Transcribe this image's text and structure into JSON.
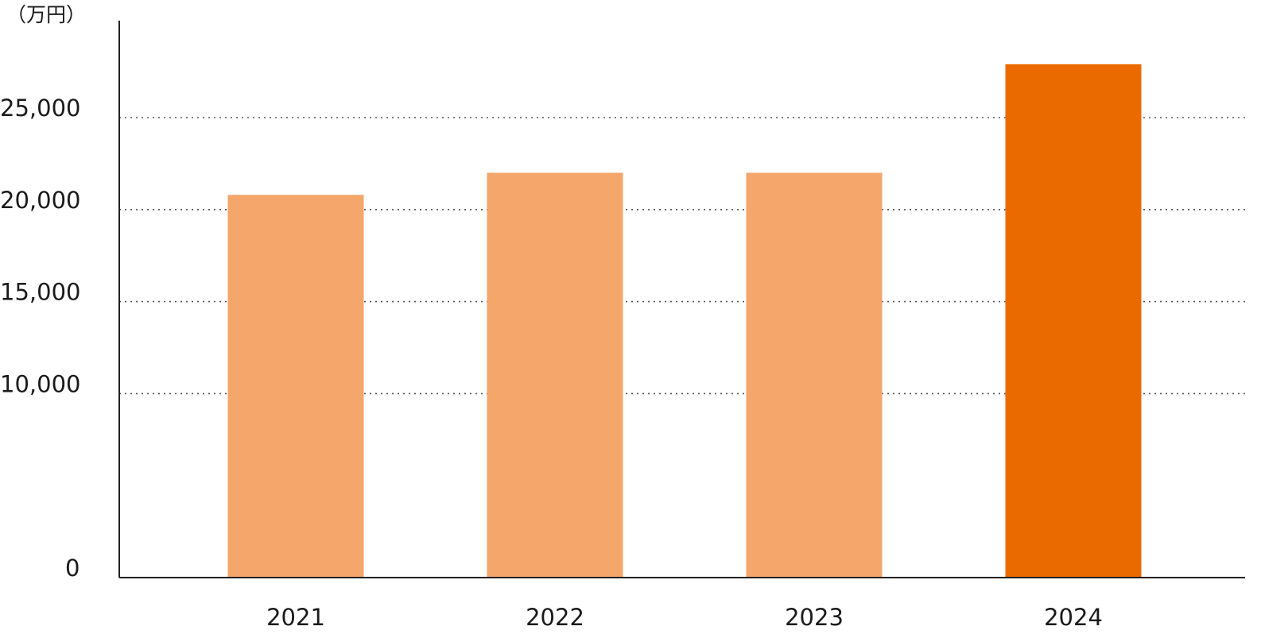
{
  "chart_data": {
    "type": "bar",
    "unit_label": "（万円）",
    "categories": [
      "2021",
      "2022",
      "2023",
      "2024"
    ],
    "values": [
      20800,
      22000,
      22000,
      27900
    ],
    "ylim": [
      0,
      29000
    ],
    "yticks": [
      0,
      10000,
      15000,
      20000,
      25000
    ],
    "ytick_labels": [
      "0",
      "10,000",
      "15,000",
      "20,000",
      "25,000"
    ],
    "grid": true,
    "grid_style": "dotted",
    "colors": {
      "bar": "#F4A66B",
      "highlight": "#EB6A00",
      "axis": "#222222",
      "grid": "#555555"
    },
    "highlight_index": 3
  }
}
